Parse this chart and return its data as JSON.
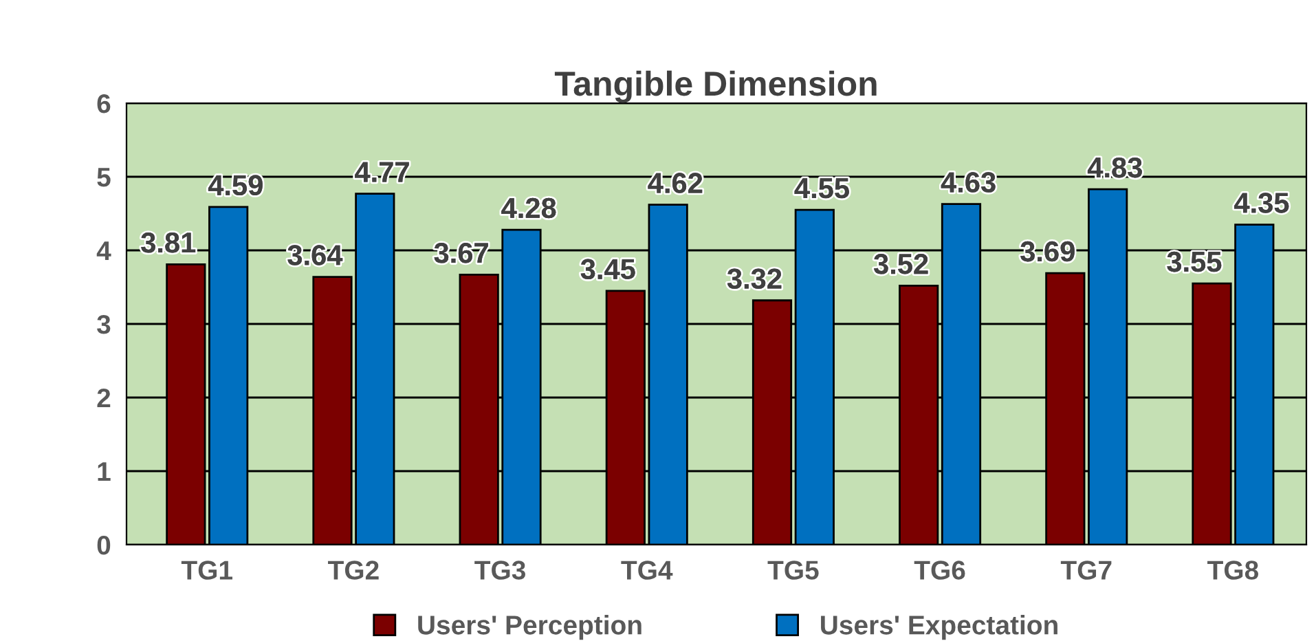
{
  "chart_data": {
    "type": "bar",
    "title": "Tangible Dimension",
    "categories": [
      "TG1",
      "TG2",
      "TG3",
      "TG4",
      "TG5",
      "TG6",
      "TG7",
      "TG8"
    ],
    "series": [
      {
        "name": "Users' Perception",
        "color": "#7b0000",
        "values": [
          3.81,
          3.64,
          3.67,
          3.45,
          3.32,
          3.52,
          3.69,
          3.55
        ]
      },
      {
        "name": "Users' Expectation",
        "color": "#0070c0",
        "values": [
          4.59,
          4.77,
          4.28,
          4.62,
          4.55,
          4.63,
          4.83,
          4.35
        ]
      }
    ],
    "ylim": [
      0,
      6
    ],
    "yticks": [
      0,
      1,
      2,
      3,
      4,
      5,
      6
    ],
    "grid": "y",
    "legend": "bottom",
    "data_labels": true
  }
}
